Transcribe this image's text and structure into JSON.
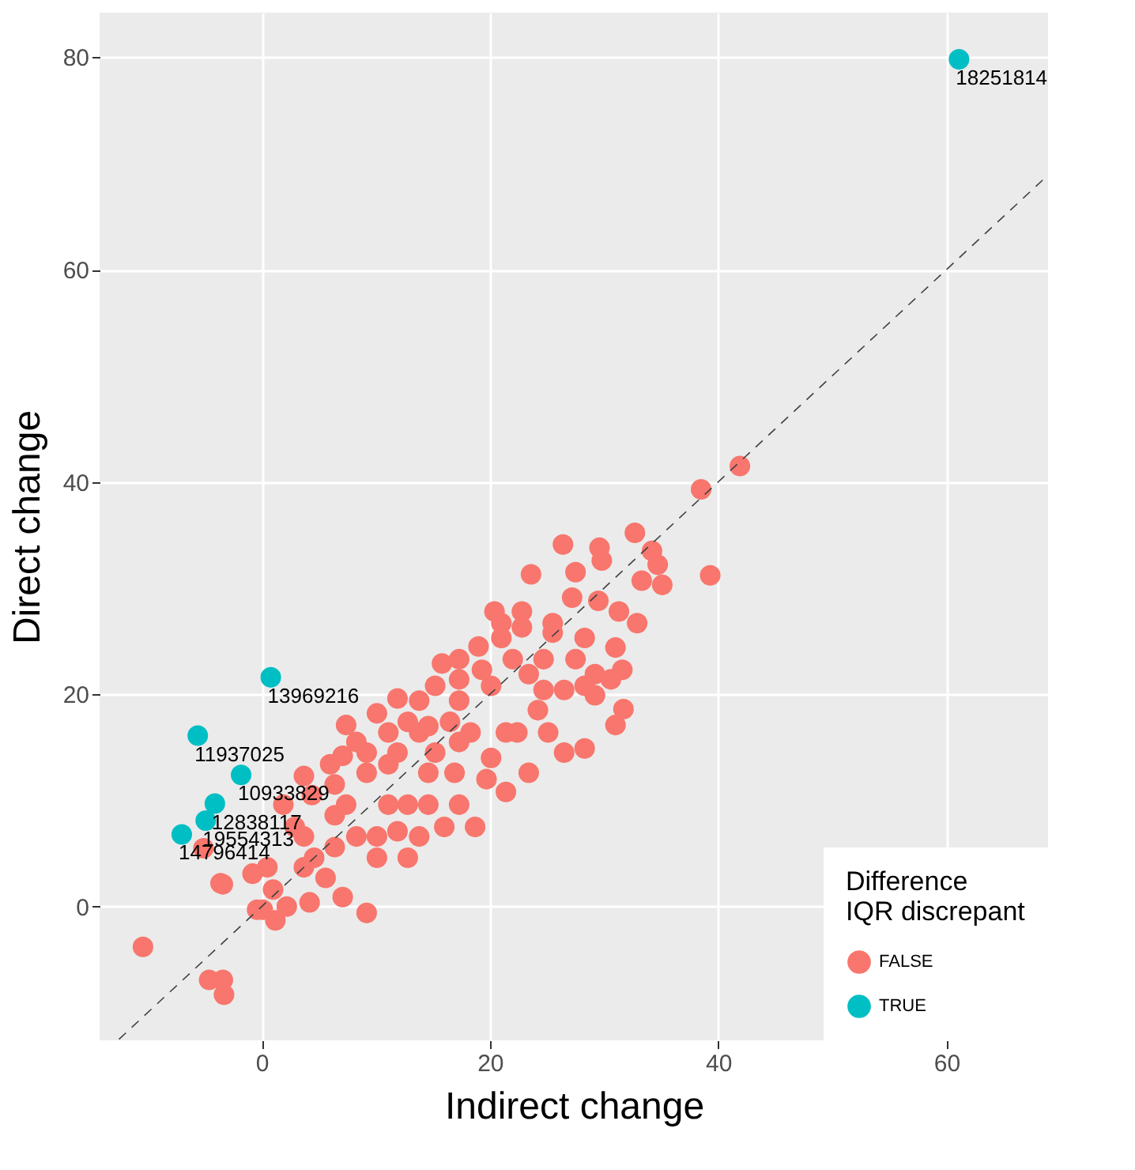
{
  "chart_data": {
    "type": "scatter",
    "xlabel": "Indirect change",
    "ylabel": "Direct change",
    "legend_title": "Difference\nIQR discrepant",
    "xlim": [
      -14.2,
      68.9
    ],
    "ylim": [
      -12.6,
      84.2
    ],
    "xticks": [
      0,
      20,
      40,
      60
    ],
    "yticks": [
      0,
      20,
      40,
      60,
      80
    ],
    "grid": true,
    "legend": "bottom right",
    "marker": "circle",
    "series": [
      {
        "name": "FALSE",
        "color": "#f8766d",
        "x": [
          -10.4,
          -4.6,
          -3.4,
          -3.3,
          -3.4,
          -5.1,
          41.9,
          38.5,
          39.3,
          32.7,
          34.2,
          34.7,
          35.1,
          33.3,
          29.6,
          29.8,
          26.4,
          27.5,
          23.6,
          27.2,
          29.5,
          31.3,
          32.9,
          20.4,
          22.8,
          19.0,
          25.5,
          31.0,
          31.6,
          31.7,
          31.0,
          28.3,
          29.2,
          26.5,
          15.8,
          11.9,
          10.1,
          7.4,
          7.1,
          3.7,
          4.4,
          1.9,
          11.9,
          13.8,
          17.3,
          20.1,
          23.4,
          24.2,
          21.4,
          23.4,
          21.4,
          18.7,
          16.0,
          16.9,
          14.6,
          12.8,
          11.1,
          9.2,
          10.1,
          12.8,
          10.1,
          9.2,
          7.1,
          4.2,
          3.7,
          0.5,
          1.0,
          0.1,
          1.2,
          2.2,
          -3.6,
          6.4,
          6.4,
          7.4,
          8.3,
          5.6,
          14.6,
          17.3,
          19.7,
          15.2,
          17.3,
          20.1,
          22.4,
          16.5,
          18.3,
          25.1,
          26.5,
          24.7,
          27.5,
          29.2,
          28.3,
          21.0,
          22.0,
          19.3,
          17.3,
          15.2,
          13.8,
          12.8,
          11.1,
          8.3,
          9.2,
          11.1,
          6.0,
          6.4,
          2.9,
          3.7,
          -0.8,
          -0.4,
          4.6,
          11.9,
          13.8,
          30.6,
          28.3,
          24.7,
          22.8,
          25.5,
          21.0,
          17.3,
          14.6
        ],
        "values": [
          -3.8,
          -6.9,
          -6.9,
          -8.3,
          2.1,
          5.5,
          41.5,
          39.3,
          31.2,
          35.2,
          33.5,
          32.2,
          30.3,
          30.7,
          33.8,
          32.6,
          34.1,
          31.5,
          31.3,
          29.1,
          28.8,
          27.8,
          26.7,
          27.8,
          26.3,
          24.5,
          25.8,
          24.4,
          22.3,
          18.6,
          17.1,
          14.9,
          19.9,
          20.4,
          22.9,
          19.6,
          18.2,
          17.1,
          14.2,
          12.3,
          10.5,
          9.6,
          14.5,
          16.4,
          19.4,
          20.8,
          21.9,
          18.5,
          16.4,
          12.6,
          10.8,
          7.5,
          7.5,
          12.6,
          12.6,
          9.6,
          9.6,
          12.6,
          6.6,
          4.6,
          4.6,
          -0.6,
          0.9,
          0.4,
          3.7,
          3.7,
          1.6,
          -0.3,
          -1.3,
          0.0,
          2.2,
          5.6,
          8.6,
          9.6,
          6.6,
          2.7,
          9.6,
          9.6,
          12.0,
          14.5,
          15.5,
          14.0,
          16.4,
          17.4,
          16.4,
          16.4,
          14.5,
          23.3,
          23.3,
          21.9,
          25.3,
          25.3,
          23.3,
          22.3,
          21.4,
          20.8,
          19.4,
          17.4,
          16.4,
          15.5,
          14.5,
          13.4,
          13.4,
          11.5,
          7.5,
          6.6,
          3.1,
          -0.3,
          4.6,
          7.1,
          6.6,
          21.4,
          20.8,
          20.4,
          27.8,
          26.7,
          26.7,
          23.3,
          17.0
        ]
      },
      {
        "name": "TRUE",
        "color": "#00bfc4",
        "x": [
          61.1,
          0.8,
          -5.6,
          -1.8,
          -4.1,
          -4.9,
          -7.0
        ],
        "values": [
          79.8,
          21.6,
          16.1,
          12.4,
          9.7,
          8.1,
          6.8
        ]
      },
      {
        "type": "line",
        "color": "#404040",
        "line_style": "dashed",
        "marker": "none",
        "x": [
          -12.5,
          68.9
        ],
        "values": [
          -12.5,
          68.9
        ]
      }
    ],
    "annotations": [
      {
        "text": "18251814",
        "x": 61.1,
        "y": 79.8
      },
      {
        "text": "13969216",
        "x": 0.8,
        "y": 21.6
      },
      {
        "text": "11937025",
        "x": -5.6,
        "y": 16.1
      },
      {
        "text": "10933829",
        "x": -1.8,
        "y": 12.4
      },
      {
        "text": "12838117",
        "x": -4.1,
        "y": 9.7
      },
      {
        "text": "19554313",
        "x": -4.9,
        "y": 8.1
      },
      {
        "text": "14796414",
        "x": -7.0,
        "y": 6.8
      }
    ]
  }
}
